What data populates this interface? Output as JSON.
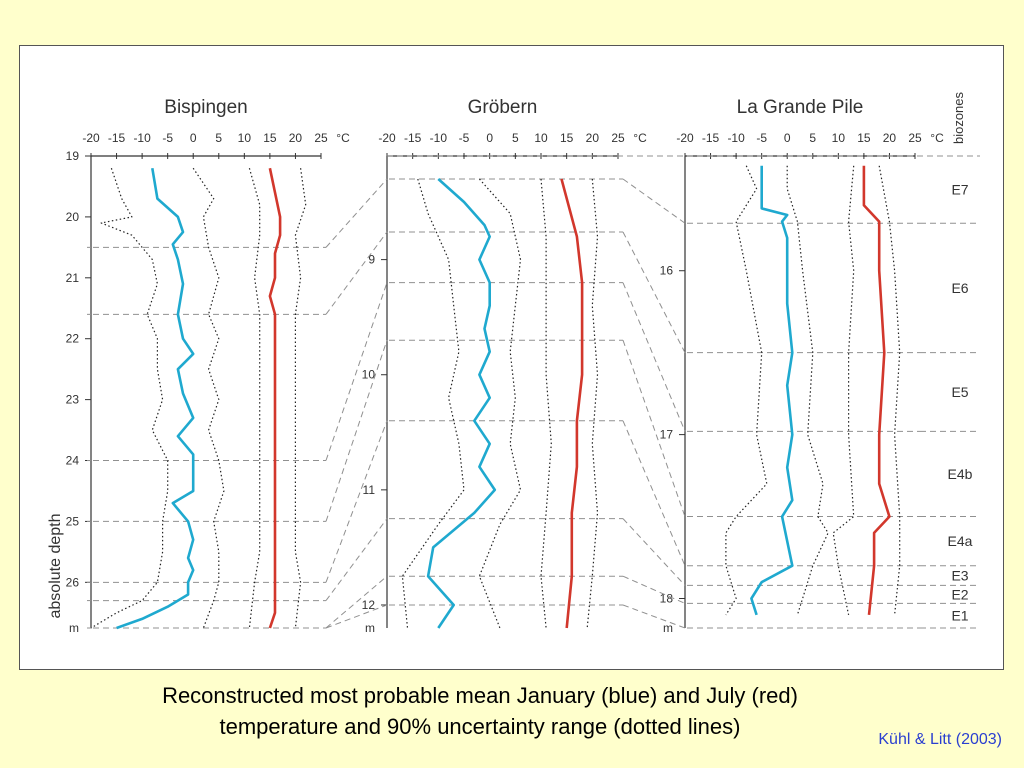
{
  "caption": {
    "line1": "Reconstructed most probable mean January (blue) and July (red)",
    "line2": "temperature and 90% uncertainty range (dotted lines)"
  },
  "credit": "Kühl & Litt (2003)",
  "colors": {
    "background": "#ffffcc",
    "january": "#1fa9cf",
    "july": "#d2372c",
    "dashed": "#909090",
    "credit": "#2a3fd0"
  },
  "chart_data": {
    "type": "line",
    "y_axis_label": "absolute depth",
    "x_unit": "°C",
    "x_ticks": [
      -20,
      -15,
      -10,
      -5,
      0,
      5,
      10,
      15,
      20,
      25
    ],
    "x_range": [
      -20,
      25
    ],
    "biozone_header": "biozones",
    "biozones": [
      "E7",
      "E6",
      "E5",
      "E4b",
      "E4a",
      "E3",
      "E2",
      "E1"
    ],
    "panels": [
      {
        "title": "Bispingen",
        "depth_unit_label": "m",
        "depth_ticks": [
          19,
          20,
          21,
          22,
          23,
          24,
          25,
          26
        ],
        "depth_range": [
          19,
          26.75
        ],
        "boundaries": [
          20.5,
          21.6,
          24.0,
          25.0,
          26.0,
          26.3,
          26.75
        ],
        "january": {
          "depth": [
            19.2,
            19.7,
            20.0,
            20.25,
            20.45,
            20.7,
            21.1,
            21.6,
            22.0,
            22.25,
            22.5,
            22.9,
            23.3,
            23.6,
            23.9,
            24.2,
            24.5,
            24.7,
            25.0,
            25.3,
            25.6,
            25.8,
            26.0,
            26.2,
            26.4,
            26.6,
            26.75
          ],
          "temp": [
            -8,
            -7,
            -3,
            -2,
            -4,
            -3,
            -2,
            -3,
            -2,
            0,
            -3,
            -2,
            0,
            -3,
            0,
            0,
            0,
            -4,
            -1,
            0,
            -1,
            0,
            -1,
            -1,
            -5,
            -10,
            -15
          ]
        },
        "january_lower": {
          "depth": [
            19.2,
            19.7,
            20.0,
            20.1,
            20.3,
            20.7,
            21.1,
            21.6,
            22.0,
            22.5,
            23.0,
            23.5,
            24.0,
            24.5,
            25.0,
            25.5,
            26.0,
            26.3,
            26.5,
            26.75
          ],
          "temp": [
            -16,
            -14,
            -12,
            -18,
            -12,
            -8,
            -7,
            -9,
            -7,
            -7,
            -6,
            -8,
            -5,
            -5,
            -6,
            -6,
            -7,
            -10,
            -15,
            -20
          ]
        },
        "january_upper": {
          "depth": [
            19.2,
            19.7,
            20.0,
            20.5,
            21.0,
            21.6,
            22.0,
            22.5,
            23.0,
            23.5,
            24.0,
            24.5,
            25.0,
            25.5,
            26.0,
            26.3,
            26.75
          ],
          "temp": [
            0,
            4,
            2,
            3,
            5,
            3,
            5,
            3,
            5,
            3,
            5,
            6,
            4,
            5,
            5,
            4,
            2
          ]
        },
        "july": {
          "depth": [
            19.2,
            19.6,
            20.0,
            20.3,
            20.6,
            21.0,
            21.3,
            21.6,
            22.0,
            23.0,
            24.0,
            24.5,
            25.0,
            25.5,
            26.0,
            26.5,
            26.75
          ],
          "temp": [
            15,
            16,
            17,
            17,
            16,
            16,
            15,
            16,
            16,
            16,
            16,
            16,
            16,
            16,
            16,
            16,
            15
          ]
        },
        "july_lower": {
          "depth": [
            19.2,
            19.8,
            20.3,
            21.0,
            21.6,
            22.5,
            23.5,
            24.5,
            25.5,
            26.0,
            26.75
          ],
          "temp": [
            11,
            13,
            13,
            12,
            13,
            13,
            13,
            13,
            13,
            12,
            11
          ]
        },
        "july_upper": {
          "depth": [
            19.2,
            19.8,
            20.3,
            21.0,
            21.6,
            22.5,
            23.5,
            24.5,
            25.5,
            26.0,
            26.75
          ],
          "temp": [
            21,
            22,
            20,
            21,
            20,
            20,
            20,
            20,
            20,
            21,
            20
          ]
        }
      },
      {
        "title": "Gröbern",
        "depth_unit_label": "m",
        "depth_ticks": [
          9,
          10,
          11,
          12
        ],
        "depth_range": [
          8.1,
          12.2
        ],
        "boundaries": [
          8.3,
          8.76,
          9.2,
          9.7,
          10.4,
          11.25,
          11.75,
          12.0
        ],
        "january": {
          "depth": [
            8.3,
            8.5,
            8.7,
            8.8,
            9.0,
            9.2,
            9.4,
            9.6,
            9.8,
            10.0,
            10.2,
            10.4,
            10.6,
            10.8,
            11.0,
            11.2,
            11.5,
            11.75,
            12.0,
            12.2
          ],
          "temp": [
            -10,
            -5,
            -1,
            0,
            -2,
            0,
            0,
            -1,
            0,
            -2,
            0,
            -3,
            0,
            -2,
            1,
            -3,
            -11,
            -12,
            -7,
            -10
          ]
        },
        "january_lower": {
          "depth": [
            8.3,
            8.6,
            9.0,
            9.4,
            9.8,
            10.2,
            10.6,
            11.0,
            11.3,
            11.75,
            12.2
          ],
          "temp": [
            -14,
            -12,
            -8,
            -7,
            -6,
            -8,
            -6,
            -5,
            -10,
            -17,
            -16
          ]
        },
        "january_upper": {
          "depth": [
            8.3,
            8.6,
            9.0,
            9.4,
            9.8,
            10.2,
            10.6,
            11.0,
            11.3,
            11.75,
            12.2
          ],
          "temp": [
            -2,
            4,
            6,
            5,
            4,
            5,
            4,
            6,
            2,
            -2,
            2
          ]
        },
        "july": {
          "depth": [
            8.3,
            8.8,
            9.2,
            9.6,
            10.0,
            10.4,
            10.8,
            11.2,
            11.75,
            12.2
          ],
          "temp": [
            14,
            17,
            18,
            18,
            18,
            17,
            17,
            16,
            16,
            15
          ]
        },
        "july_lower": {
          "depth": [
            8.3,
            8.8,
            9.4,
            10.0,
            10.6,
            11.2,
            11.75,
            12.2
          ],
          "temp": [
            10,
            11,
            11,
            11,
            12,
            11,
            10,
            11
          ]
        },
        "july_upper": {
          "depth": [
            8.3,
            8.8,
            9.4,
            10.0,
            10.6,
            11.2,
            11.75,
            12.2
          ],
          "temp": [
            20,
            21,
            20,
            21,
            20,
            21,
            20,
            19
          ]
        }
      },
      {
        "title": "La Grande Pile",
        "depth_unit_label": "m",
        "depth_ticks": [
          16,
          17,
          18
        ],
        "depth_range": [
          15.3,
          18.18
        ],
        "boundaries": [
          15.71,
          16.5,
          16.98,
          17.5,
          17.8,
          17.92,
          18.03,
          18.18
        ],
        "january": {
          "depth": [
            15.36,
            15.5,
            15.62,
            15.66,
            15.7,
            15.8,
            16.0,
            16.2,
            16.5,
            16.7,
            17.0,
            17.2,
            17.4,
            17.5,
            17.8,
            17.9,
            18.0,
            18.1
          ],
          "temp": [
            -5,
            -5,
            -5,
            0,
            -1,
            0,
            0,
            0,
            1,
            0,
            1,
            0,
            1,
            -1,
            1,
            -5,
            -7,
            -6
          ]
        },
        "january_lower": {
          "depth": [
            15.36,
            15.5,
            15.7,
            16.0,
            16.5,
            17.0,
            17.3,
            17.5,
            17.6,
            17.8,
            18.0,
            18.1
          ],
          "temp": [
            -8,
            -6,
            -10,
            -8,
            -5,
            -6,
            -4,
            -10,
            -12,
            -12,
            -10,
            -12
          ]
        },
        "january_upper": {
          "depth": [
            15.36,
            15.5,
            15.7,
            16.0,
            16.5,
            17.0,
            17.3,
            17.5,
            17.6,
            17.8,
            18.0,
            18.1
          ],
          "temp": [
            0,
            0,
            2,
            3,
            5,
            4,
            7,
            6,
            8,
            5,
            3,
            2
          ]
        },
        "july": {
          "depth": [
            15.36,
            15.6,
            15.7,
            16.0,
            16.5,
            17.0,
            17.1,
            17.3,
            17.5,
            17.6,
            17.8,
            18.1
          ],
          "temp": [
            15,
            15,
            18,
            18,
            19,
            18,
            18,
            18,
            20,
            17,
            17,
            16
          ]
        },
        "july_lower": {
          "depth": [
            15.36,
            15.7,
            16.0,
            16.5,
            17.0,
            17.5,
            17.6,
            17.8,
            18.1
          ],
          "temp": [
            13,
            12,
            13,
            12,
            12,
            13,
            9,
            10,
            12
          ]
        },
        "july_upper": {
          "depth": [
            15.36,
            15.7,
            16.0,
            16.5,
            17.0,
            17.5,
            17.6,
            17.8,
            18.1
          ],
          "temp": [
            18,
            20,
            21,
            22,
            21,
            22,
            22,
            22,
            21
          ]
        }
      }
    ]
  }
}
